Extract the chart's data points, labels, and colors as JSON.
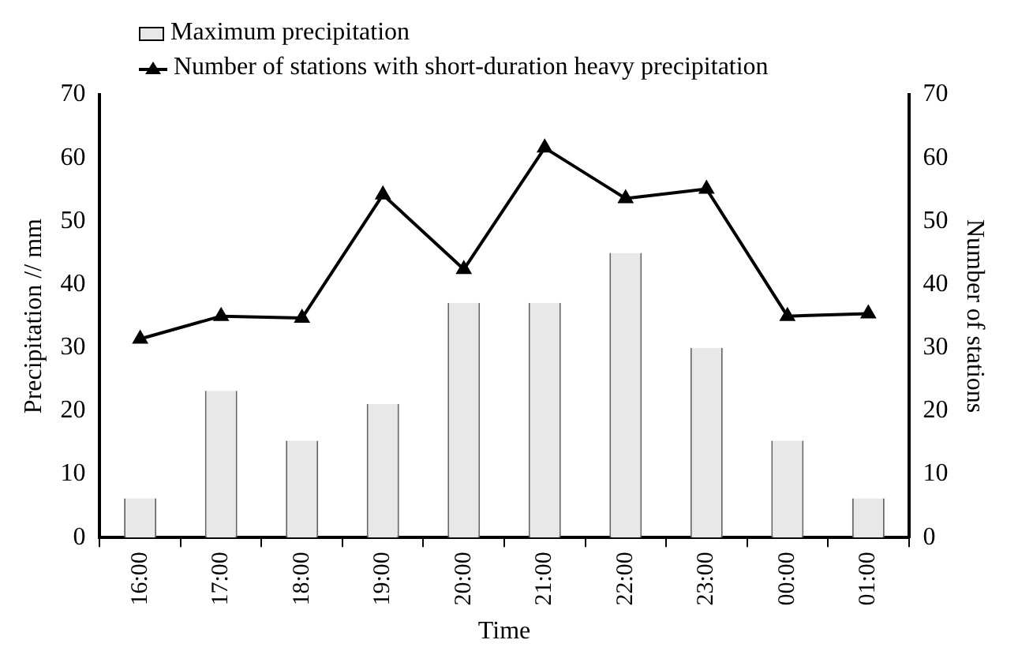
{
  "chart_data": {
    "type": "line",
    "xlabel": "Time",
    "ylabel": "Precipitation // mm",
    "y2label": "Number of stations",
    "categories": [
      "16:00",
      "17:00",
      "18:00",
      "19:00",
      "20:00",
      "21:00",
      "22:00",
      "23:00",
      "00:00",
      "01:00"
    ],
    "series": [
      {
        "name": "Maximum precipitation",
        "type": "bar",
        "color": "#e8e8e8",
        "values": [
          6.2,
          23.2,
          15.3,
          21.1,
          37.1,
          37.1,
          45,
          30,
          15.3,
          6.2
        ]
      },
      {
        "name": "Number of stations with short-duration heavy precipitation",
        "axis": "y2",
        "color": "#000000",
        "marker": "triangle",
        "values": [
          31.4,
          35,
          34.7,
          54.2,
          42.4,
          61.6,
          53.6,
          55.1,
          35,
          35.4
        ]
      }
    ],
    "ylim": [
      0,
      70
    ],
    "yticks": [
      0,
      10,
      20,
      30,
      40,
      50,
      60,
      70
    ],
    "y2lim": [
      0,
      70
    ],
    "y2ticks": [
      0,
      10,
      20,
      30,
      40,
      50,
      60,
      70
    ],
    "grid": false,
    "legend": "top left"
  }
}
